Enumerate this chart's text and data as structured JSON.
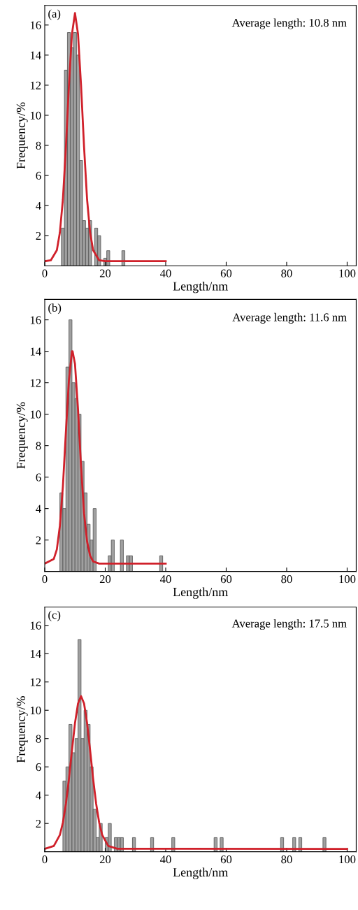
{
  "chart_data": [
    {
      "type": "histogram",
      "xlabel": "Length/nm",
      "ylabel": "Frequency/%",
      "annotations": [
        "(a)",
        "Average length: 10.8 nm"
      ],
      "bins": [
        5.5,
        6.5,
        7.5,
        8.5,
        9.5,
        10.5,
        11.5,
        12.5,
        13.5,
        14.5,
        15.5,
        16.5,
        17.5,
        18.5,
        19.5,
        20.5,
        21.5,
        22.5,
        23.5,
        24.5,
        25.5,
        26.5
      ],
      "values": [
        2.5,
        13,
        15.5,
        14.5,
        15.5,
        14,
        7,
        3,
        2.5,
        3,
        0,
        2.5,
        2,
        0,
        0.5,
        1,
        0,
        0,
        0,
        0,
        1
      ],
      "color": "#a0a0a0",
      "series": [
        {
          "type": "line",
          "color": "#d0202a",
          "x": [
            0,
            2,
            4,
            5,
            6,
            7,
            8,
            9,
            10,
            11,
            12,
            13,
            14,
            15,
            16,
            18,
            20,
            40
          ],
          "values": [
            0.3,
            0.36,
            1.03,
            2.2,
            4.4,
            7.9,
            12.0,
            15.4,
            16.8,
            15.4,
            12.0,
            7.9,
            4.4,
            2.2,
            1.03,
            0.36,
            0.3,
            0.3
          ]
        }
      ],
      "xlim": [
        0,
        103
      ],
      "ylim": [
        0,
        17.3
      ],
      "xticks": [
        0,
        20,
        40,
        60,
        80,
        100
      ],
      "yticks": [
        2,
        4,
        6,
        8,
        10,
        12,
        14,
        16
      ]
    },
    {
      "type": "histogram",
      "xlabel": "Length/nm",
      "ylabel": "Frequency/%",
      "annotations": [
        "(b)",
        "Average length: 11.6 nm"
      ],
      "bins": [
        5,
        6,
        7,
        8,
        9,
        10,
        11,
        12,
        13,
        14,
        15,
        16,
        17,
        18,
        19,
        20,
        21,
        22,
        23,
        24,
        25,
        26,
        27,
        28,
        29,
        30,
        31,
        32,
        33,
        34,
        35,
        36,
        37,
        38,
        39
      ],
      "values": [
        5,
        4,
        13,
        16,
        12,
        11,
        10,
        7,
        5,
        3,
        2,
        4,
        0,
        0,
        0,
        0,
        1,
        2,
        0,
        0,
        2,
        0,
        1,
        1,
        0,
        0,
        0,
        0,
        0,
        0,
        0,
        0,
        0,
        1
      ],
      "color": "#a0a0a0",
      "series": [
        {
          "type": "line",
          "color": "#d0202a",
          "x": [
            0,
            3,
            4,
            5,
            6,
            7,
            8,
            9,
            9.2,
            10,
            11,
            12,
            13,
            14,
            15,
            16,
            18,
            40
          ],
          "values": [
            0.5,
            0.8,
            1.4,
            2.9,
            5.4,
            8.9,
            12.2,
            14.0,
            14.0,
            13.2,
            10.3,
            6.7,
            3.7,
            1.9,
            1.0,
            0.64,
            0.5,
            0.5
          ]
        }
      ],
      "xlim": [
        0,
        103
      ],
      "ylim": [
        0,
        17.3
      ],
      "xticks": [
        0,
        20,
        40,
        60,
        80,
        100
      ],
      "yticks": [
        2,
        4,
        6,
        8,
        10,
        12,
        14,
        16
      ]
    },
    {
      "type": "histogram",
      "xlabel": "Length/nm",
      "ylabel": "Frequency/%",
      "annotations": [
        "(c)",
        "Average length: 17.5 nm"
      ],
      "bins": [
        6,
        7,
        8,
        9,
        10,
        11,
        12,
        13,
        14,
        15,
        16,
        17,
        18,
        19,
        20,
        21,
        22,
        23,
        24,
        25,
        26,
        27,
        28,
        29,
        30,
        31,
        32,
        33,
        34,
        35,
        36,
        37,
        38,
        39,
        40,
        41,
        42,
        43,
        44,
        45,
        46,
        47,
        48,
        49,
        50,
        51,
        52,
        53,
        54,
        55,
        56,
        57,
        58,
        59,
        60,
        61,
        62,
        63,
        64,
        65,
        66,
        67,
        68,
        69,
        70,
        71,
        72,
        73,
        74,
        75,
        76,
        77,
        78,
        79,
        80,
        81,
        82,
        83,
        84,
        85,
        86,
        87,
        88,
        89,
        90,
        91,
        92,
        93
      ],
      "values": [
        5,
        6,
        9,
        7,
        8,
        15,
        8,
        10,
        9,
        6,
        3,
        1,
        2,
        0,
        1,
        2,
        0,
        1,
        1,
        1,
        0,
        0,
        0,
        1,
        0,
        0,
        0,
        0,
        0,
        1,
        0,
        0,
        0,
        0,
        0,
        0,
        1,
        0,
        0,
        0,
        0,
        0,
        0,
        0,
        0,
        0,
        0,
        0,
        0,
        0,
        1,
        0,
        1,
        0,
        0,
        0,
        0,
        0,
        0,
        0,
        0,
        0,
        0,
        0,
        0,
        0,
        0,
        0,
        0,
        0,
        0,
        0,
        1,
        0,
        0,
        0,
        1,
        0,
        1,
        0,
        0,
        0,
        0,
        0,
        0,
        0,
        1
      ],
      "color": "#a0a0a0",
      "series": [
        {
          "type": "line",
          "color": "#d0202a",
          "x": [
            0,
            3,
            5,
            6,
            7,
            8,
            9,
            10,
            11,
            12,
            13,
            14,
            15,
            16,
            17,
            18,
            19,
            21,
            24,
            100
          ],
          "values": [
            0.21,
            0.41,
            1.19,
            2.06,
            3.39,
            5.15,
            7.17,
            9.09,
            10.48,
            11.0,
            10.48,
            9.09,
            7.17,
            5.15,
            3.39,
            2.06,
            1.19,
            0.41,
            0.21,
            0.2
          ]
        }
      ],
      "xlim": [
        0,
        103
      ],
      "ylim": [
        0,
        17.3
      ],
      "xticks": [
        0,
        20,
        40,
        60,
        80,
        100
      ],
      "yticks": [
        2,
        4,
        6,
        8,
        10,
        12,
        14,
        16
      ]
    }
  ]
}
